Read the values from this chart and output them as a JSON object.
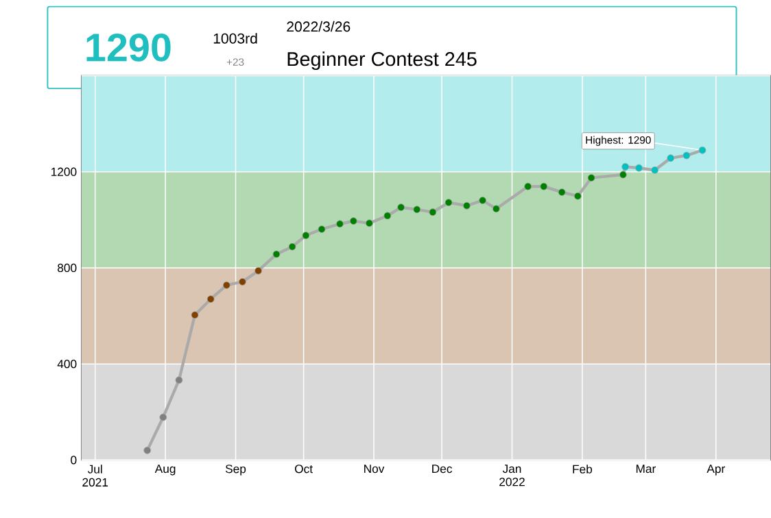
{
  "chart_data": {
    "type": "line",
    "title": "Beginner Contest 245",
    "subtitle": "2022/3/26",
    "annotations": [
      "1290",
      "1003rd",
      "+23",
      {
        "text": "Highest: 1290",
        "x": "2022-03-26",
        "y": 1290
      }
    ],
    "x": [
      "2021-07-24",
      "2021-07-31",
      "2021-08-07",
      "2021-08-14",
      "2021-08-21",
      "2021-08-28",
      "2021-09-04",
      "2021-09-11",
      "2021-09-19",
      "2021-09-26",
      "2021-10-02",
      "2021-10-09",
      "2021-10-17",
      "2021-10-23",
      "2021-10-30",
      "2021-11-07",
      "2021-11-13",
      "2021-11-20",
      "2021-11-27",
      "2021-12-04",
      "2021-12-12",
      "2021-12-19",
      "2021-12-25",
      "2022-01-08",
      "2022-01-15",
      "2022-01-23",
      "2022-01-30",
      "2022-02-05",
      "2022-02-19",
      "2022-02-20",
      "2022-02-26",
      "2022-03-05",
      "2022-03-12",
      "2022-03-19",
      "2022-03-26"
    ],
    "series": [
      {
        "color": "#aaaaaa",
        "values": [
          40,
          178,
          333,
          604,
          670,
          728,
          742,
          788,
          857,
          888,
          935,
          961,
          983,
          995,
          986,
          1017,
          1052,
          1043,
          1032,
          1072,
          1059,
          1081,
          1046,
          1139,
          1139,
          1115,
          1099,
          1175,
          1188,
          1221,
          1216,
          1207,
          1257,
          1268,
          1290
        ],
        "colors": [
          "#808080",
          "#808080",
          "#808080",
          "#804000",
          "#804000",
          "#804000",
          "#804000",
          "#804000",
          "#008000",
          "#008000",
          "#008000",
          "#008000",
          "#008000",
          "#008000",
          "#008000",
          "#008000",
          "#008000",
          "#008000",
          "#008000",
          "#008000",
          "#008000",
          "#008000",
          "#008000",
          "#008000",
          "#008000",
          "#008000",
          "#008000",
          "#008000",
          "#008000",
          "#00c0c0",
          "#00c0c0",
          "#00c0c0",
          "#00c0c0",
          "#00c0c0",
          "#00c0c0"
        ]
      }
    ],
    "xlim": [
      "2021-06-25",
      "2022-04-25"
    ],
    "xticks": [
      {
        "value": "2021-07-01",
        "label": "Jul 2021"
      },
      {
        "value": "2021-08-01",
        "label": "Aug"
      },
      {
        "value": "2021-09-01",
        "label": "Sep"
      },
      {
        "value": "2021-10-01",
        "label": "Oct"
      },
      {
        "value": "2021-11-01",
        "label": "Nov"
      },
      {
        "value": "2021-12-01",
        "label": "Dec"
      },
      {
        "value": "2022-01-01",
        "label": "Jan 2022"
      },
      {
        "value": "2022-02-01",
        "label": "Feb"
      },
      {
        "value": "2022-03-01",
        "label": "Mar"
      },
      {
        "value": "2022-04-01",
        "label": "Apr"
      }
    ],
    "ylim": [
      0,
      1600
    ],
    "yticks": [
      0,
      400,
      800,
      1200,
      {
        "value": 1600,
        "label": null
      }
    ],
    "bands": [
      {
        "axis": "y",
        "from": 0,
        "to": 400,
        "color": "#d9d9d9"
      },
      {
        "axis": "y",
        "from": 400,
        "to": 800,
        "color": "#d9c5b2"
      },
      {
        "axis": "y",
        "from": 800,
        "to": 1200,
        "color": "#b2d9b2"
      },
      {
        "axis": "y",
        "from": 1200,
        "to": 1600,
        "color": "#b2ecec"
      }
    ],
    "grid": true,
    "marker": "circle",
    "line_style": "solid"
  }
}
